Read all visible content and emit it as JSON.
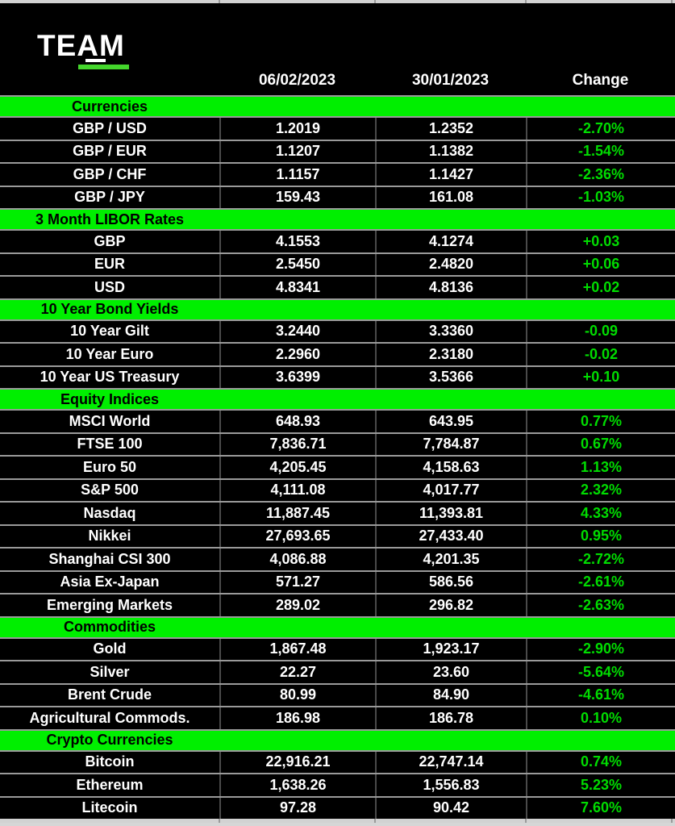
{
  "colors": {
    "table_background": "#000000",
    "band_green": "#00ef00",
    "change_green": "#00dc00",
    "logo_green": "#44d62c",
    "text_white": "#ffffff"
  },
  "logo": {
    "text": "TEAM"
  },
  "header": {
    "date_current": "06/02/2023",
    "date_previous": "30/01/2023",
    "change_label": "Change"
  },
  "sections": [
    {
      "title": "Currencies",
      "rows": [
        {
          "label": "GBP / USD",
          "current": "1.2019",
          "previous": "1.2352",
          "change": "-2.70%"
        },
        {
          "label": "GBP / EUR",
          "current": "1.1207",
          "previous": "1.1382",
          "change": "-1.54%"
        },
        {
          "label": "GBP / CHF",
          "current": "1.1157",
          "previous": "1.1427",
          "change": "-2.36%"
        },
        {
          "label": "GBP / JPY",
          "current": "159.43",
          "previous": "161.08",
          "change": "-1.03%"
        }
      ]
    },
    {
      "title": "3 Month LIBOR Rates",
      "rows": [
        {
          "label": "GBP",
          "current": "4.1553",
          "previous": "4.1274",
          "change": "+0.03"
        },
        {
          "label": "EUR",
          "current": "2.5450",
          "previous": "2.4820",
          "change": "+0.06"
        },
        {
          "label": "USD",
          "current": "4.8341",
          "previous": "4.8136",
          "change": "+0.02"
        }
      ]
    },
    {
      "title": "10 Year Bond Yields",
      "rows": [
        {
          "label": "10 Year Gilt",
          "current": "3.2440",
          "previous": "3.3360",
          "change": "-0.09"
        },
        {
          "label": "10 Year Euro",
          "current": "2.2960",
          "previous": "2.3180",
          "change": "-0.02"
        },
        {
          "label": "10 Year US Treasury",
          "current": "3.6399",
          "previous": "3.5366",
          "change": "+0.10"
        }
      ]
    },
    {
      "title": "Equity Indices",
      "rows": [
        {
          "label": "MSCI World",
          "current": "648.93",
          "previous": "643.95",
          "change": "0.77%"
        },
        {
          "label": "FTSE 100",
          "current": "7,836.71",
          "previous": "7,784.87",
          "change": "0.67%"
        },
        {
          "label": "Euro 50",
          "current": "4,205.45",
          "previous": "4,158.63",
          "change": "1.13%"
        },
        {
          "label": "S&P 500",
          "current": "4,111.08",
          "previous": "4,017.77",
          "change": "2.32%"
        },
        {
          "label": "Nasdaq",
          "current": "11,887.45",
          "previous": "11,393.81",
          "change": "4.33%"
        },
        {
          "label": "Nikkei",
          "current": "27,693.65",
          "previous": "27,433.40",
          "change": "0.95%"
        },
        {
          "label": "Shanghai CSI 300",
          "current": "4,086.88",
          "previous": "4,201.35",
          "change": "-2.72%"
        },
        {
          "label": "Asia Ex-Japan",
          "current": "571.27",
          "previous": "586.56",
          "change": "-2.61%"
        },
        {
          "label": "Emerging Markets",
          "current": "289.02",
          "previous": "296.82",
          "change": "-2.63%"
        }
      ]
    },
    {
      "title": "Commodities",
      "rows": [
        {
          "label": "Gold",
          "current": "1,867.48",
          "previous": "1,923.17",
          "change": "-2.90%"
        },
        {
          "label": "Silver",
          "current": "22.27",
          "previous": "23.60",
          "change": "-5.64%"
        },
        {
          "label": "Brent Crude",
          "current": "80.99",
          "previous": "84.90",
          "change": "-4.61%"
        },
        {
          "label": "Agricultural Commods.",
          "current": "186.98",
          "previous": "186.78",
          "change": "0.10%"
        }
      ]
    },
    {
      "title": "Crypto Currencies",
      "rows": [
        {
          "label": "Bitcoin",
          "current": "22,916.21",
          "previous": "22,747.14",
          "change": "0.74%"
        },
        {
          "label": "Ethereum",
          "current": "1,638.26",
          "previous": "1,556.83",
          "change": "5.23%"
        },
        {
          "label": "Litecoin",
          "current": "97.28",
          "previous": "90.42",
          "change": "7.60%"
        }
      ]
    }
  ]
}
